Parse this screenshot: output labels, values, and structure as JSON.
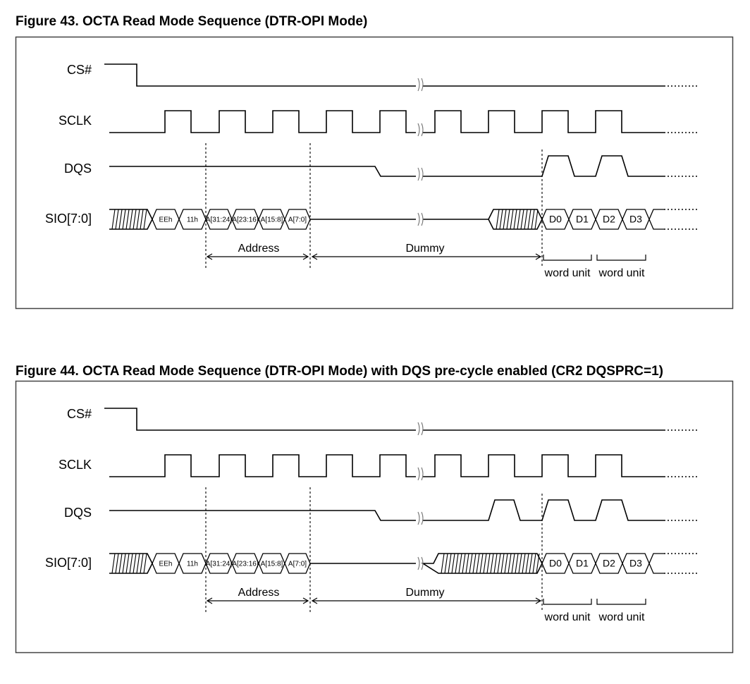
{
  "figures": [
    {
      "id": "fig43",
      "title": "Figure 43. OCTA Read Mode Sequence (DTR-OPI Mode)",
      "signals": [
        "CS#",
        "SCLK",
        "DQS",
        "SIO[7:0]"
      ],
      "dqs_precycle": false,
      "bus_values": [
        "EEh",
        "11h",
        "A[31:24]",
        "A[23:16]",
        "A[15:8]",
        "A[7:0]",
        "D0",
        "D1",
        "D2",
        "D3"
      ],
      "annotations": {
        "address": "Address",
        "dummy": "Dummy",
        "word_unit_1": "word unit",
        "word_unit_2": "word unit"
      }
    },
    {
      "id": "fig44",
      "title": "Figure 44. OCTA Read Mode Sequence (DTR-OPI Mode) with DQS pre-cycle enabled (CR2 DQSPRC=1)",
      "signals": [
        "CS#",
        "SCLK",
        "DQS",
        "SIO[7:0]"
      ],
      "dqs_precycle": true,
      "bus_values": [
        "EEh",
        "11h",
        "A[31:24]",
        "A[23:16]",
        "A[15:8]",
        "A[7:0]",
        "D0",
        "D1",
        "D2",
        "D3"
      ],
      "annotations": {
        "address": "Address",
        "dummy": "Dummy",
        "word_unit_1": "word unit",
        "word_unit_2": "word unit"
      }
    }
  ],
  "colors": {
    "line": "#000000",
    "frame": "#444444",
    "background": "#ffffff"
  }
}
